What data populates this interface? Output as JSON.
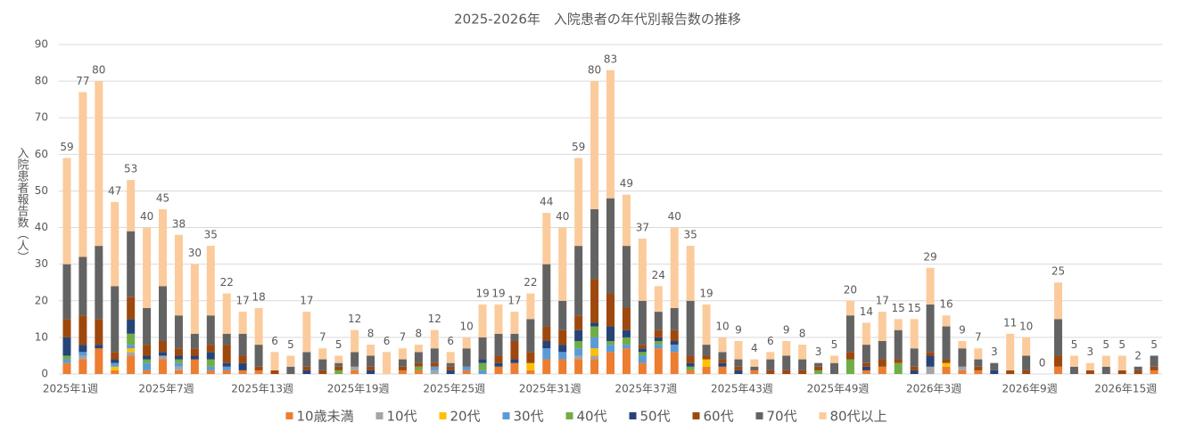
{
  "chart_data": {
    "type": "stacked_bar",
    "title": "2025-2026年　入院患者の年代別報告数の推移",
    "y_label": "入院患者報告数（人）",
    "categories": [
      "2025年1週",
      null,
      null,
      null,
      null,
      null,
      "2025年7週",
      null,
      null,
      null,
      null,
      null,
      "2025年13週",
      null,
      null,
      null,
      null,
      null,
      "2025年19週",
      null,
      null,
      null,
      null,
      null,
      "2025年25週",
      null,
      null,
      null,
      null,
      null,
      "2025年31週",
      null,
      null,
      null,
      null,
      null,
      "2025年37週",
      null,
      null,
      null,
      null,
      null,
      "2025年43週",
      null,
      null,
      null,
      null,
      null,
      "2025年49週",
      null,
      null,
      null,
      null,
      null,
      "2026年3週",
      null,
      null,
      null,
      null,
      null,
      "2026年9週",
      null,
      null,
      null,
      null,
      null,
      "2026年15週",
      null,
      null
    ],
    "totals": [
      59,
      77,
      80,
      47,
      53,
      40,
      45,
      38,
      30,
      35,
      22,
      17,
      18,
      6,
      5,
      17,
      7,
      5,
      12,
      8,
      6,
      7,
      8,
      12,
      6,
      10,
      19,
      19,
      17,
      22,
      44,
      40,
      59,
      80,
      83,
      49,
      37,
      24,
      40,
      35,
      19,
      10,
      9,
      4,
      6,
      9,
      8,
      3,
      5,
      20,
      14,
      17,
      15,
      15,
      29,
      16,
      9,
      7,
      3,
      11,
      10,
      0,
      25,
      5,
      3,
      5,
      5,
      2,
      5
    ],
    "series": [
      {
        "name": "10歳未満",
        "color": "#ED7D31",
        "values": [
          3,
          4,
          7,
          1,
          5,
          1,
          4,
          1,
          4,
          1,
          1,
          1,
          1,
          0,
          0,
          0,
          0,
          0,
          1,
          0,
          0,
          1,
          1,
          0,
          0,
          1,
          0,
          2,
          3,
          1,
          4,
          4,
          4,
          4,
          6,
          7,
          3,
          7,
          6,
          1,
          2,
          2,
          0,
          1,
          0,
          0,
          0,
          0,
          0,
          0,
          1,
          2,
          0,
          0,
          0,
          2,
          1,
          1,
          0,
          0,
          0,
          0,
          2,
          0,
          0,
          0,
          0,
          0,
          1
        ]
      },
      {
        "name": "10代",
        "color": "#A5A5A5",
        "values": [
          0,
          1,
          0,
          0,
          1,
          0,
          1,
          1,
          0,
          0,
          0,
          0,
          0,
          0,
          0,
          0,
          0,
          0,
          1,
          0,
          0,
          0,
          0,
          1,
          0,
          0,
          0,
          0,
          0,
          0,
          0,
          0,
          1,
          1,
          0,
          0,
          0,
          0,
          0,
          0,
          0,
          0,
          0,
          0,
          0,
          0,
          0,
          0,
          0,
          0,
          0,
          0,
          0,
          0,
          2,
          0,
          1,
          0,
          0,
          0,
          0,
          0,
          0,
          0,
          0,
          0,
          0,
          0,
          0
        ]
      },
      {
        "name": "20代",
        "color": "#FFC000",
        "values": [
          0,
          0,
          0,
          1,
          1,
          0,
          0,
          0,
          0,
          0,
          0,
          0,
          0,
          0,
          0,
          0,
          0,
          0,
          0,
          0,
          0,
          0,
          0,
          0,
          0,
          0,
          0,
          0,
          0,
          2,
          0,
          0,
          0,
          2,
          0,
          0,
          0,
          0,
          0,
          0,
          2,
          0,
          0,
          0,
          0,
          0,
          0,
          0,
          0,
          0,
          0,
          0,
          0,
          0,
          0,
          1,
          0,
          0,
          0,
          0,
          0,
          0,
          0,
          0,
          0,
          0,
          0,
          0,
          0
        ]
      },
      {
        "name": "30代",
        "color": "#5B9BD5",
        "values": [
          1,
          1,
          0,
          1,
          1,
          2,
          0,
          1,
          0,
          1,
          1,
          0,
          0,
          0,
          0,
          0,
          0,
          0,
          0,
          0,
          0,
          0,
          0,
          1,
          0,
          1,
          1,
          0,
          0,
          0,
          3,
          2,
          2,
          3,
          2,
          1,
          2,
          1,
          2,
          0,
          0,
          0,
          0,
          0,
          0,
          0,
          0,
          0,
          0,
          0,
          0,
          0,
          0,
          0,
          0,
          0,
          0,
          0,
          0,
          0,
          0,
          0,
          0,
          0,
          0,
          0,
          0,
          0,
          0
        ]
      },
      {
        "name": "40代",
        "color": "#70AD47",
        "values": [
          1,
          0,
          0,
          0,
          3,
          1,
          0,
          1,
          0,
          2,
          0,
          0,
          0,
          0,
          0,
          0,
          0,
          1,
          0,
          0,
          0,
          0,
          1,
          0,
          0,
          0,
          2,
          0,
          0,
          0,
          0,
          0,
          2,
          3,
          1,
          2,
          1,
          1,
          0,
          1,
          0,
          0,
          0,
          0,
          0,
          0,
          0,
          1,
          0,
          4,
          0,
          0,
          3,
          0,
          0,
          0,
          0,
          0,
          0,
          0,
          0,
          0,
          0,
          0,
          0,
          0,
          0,
          0,
          0
        ]
      },
      {
        "name": "50代",
        "color": "#264478",
        "values": [
          5,
          2,
          1,
          1,
          4,
          1,
          1,
          1,
          1,
          2,
          1,
          2,
          0,
          0,
          0,
          1,
          0,
          0,
          0,
          1,
          0,
          0,
          0,
          0,
          1,
          0,
          1,
          1,
          1,
          0,
          2,
          2,
          3,
          1,
          4,
          2,
          1,
          1,
          1,
          1,
          0,
          1,
          1,
          0,
          0,
          0,
          0,
          0,
          0,
          0,
          1,
          0,
          0,
          1,
          3,
          0,
          0,
          0,
          1,
          0,
          0,
          0,
          0,
          0,
          0,
          0,
          0,
          0,
          0
        ]
      },
      {
        "name": "60代",
        "color": "#9E480E",
        "values": [
          5,
          8,
          7,
          2,
          6,
          3,
          3,
          2,
          2,
          2,
          5,
          2,
          1,
          1,
          0,
          1,
          1,
          1,
          0,
          1,
          0,
          1,
          1,
          1,
          1,
          0,
          0,
          2,
          5,
          3,
          4,
          4,
          4,
          12,
          9,
          6,
          1,
          2,
          3,
          2,
          1,
          1,
          1,
          0,
          1,
          1,
          1,
          1,
          0,
          2,
          1,
          2,
          1,
          1,
          1,
          1,
          0,
          1,
          0,
          1,
          1,
          0,
          3,
          0,
          1,
          0,
          1,
          1,
          1
        ]
      },
      {
        "name": "70代",
        "color": "#636363",
        "values": [
          15,
          16,
          20,
          18,
          18,
          10,
          15,
          9,
          4,
          8,
          3,
          6,
          6,
          0,
          2,
          4,
          3,
          1,
          4,
          3,
          0,
          2,
          3,
          4,
          1,
          5,
          6,
          6,
          2,
          9,
          17,
          8,
          19,
          19,
          26,
          17,
          12,
          5,
          6,
          15,
          3,
          2,
          2,
          1,
          3,
          4,
          3,
          1,
          3,
          10,
          5,
          5,
          8,
          5,
          13,
          9,
          5,
          2,
          2,
          0,
          4,
          0,
          10,
          2,
          0,
          2,
          0,
          1,
          3
        ]
      },
      {
        "name": "80代以上",
        "color": "#FBCB9C",
        "values": [
          29,
          45,
          45,
          23,
          14,
          22,
          21,
          22,
          19,
          19,
          11,
          6,
          10,
          5,
          3,
          11,
          3,
          2,
          6,
          3,
          6,
          3,
          2,
          5,
          3,
          3,
          9,
          8,
          6,
          7,
          14,
          20,
          24,
          35,
          35,
          14,
          17,
          7,
          22,
          15,
          11,
          4,
          5,
          2,
          2,
          4,
          4,
          0,
          2,
          4,
          6,
          8,
          3,
          8,
          10,
          3,
          2,
          3,
          0,
          10,
          5,
          0,
          10,
          3,
          2,
          3,
          4,
          0,
          0
        ]
      }
    ],
    "ylim": [
      0,
      90
    ],
    "yticks": [
      0,
      10,
      20,
      30,
      40,
      50,
      60,
      70,
      80,
      90
    ],
    "grid": true
  }
}
